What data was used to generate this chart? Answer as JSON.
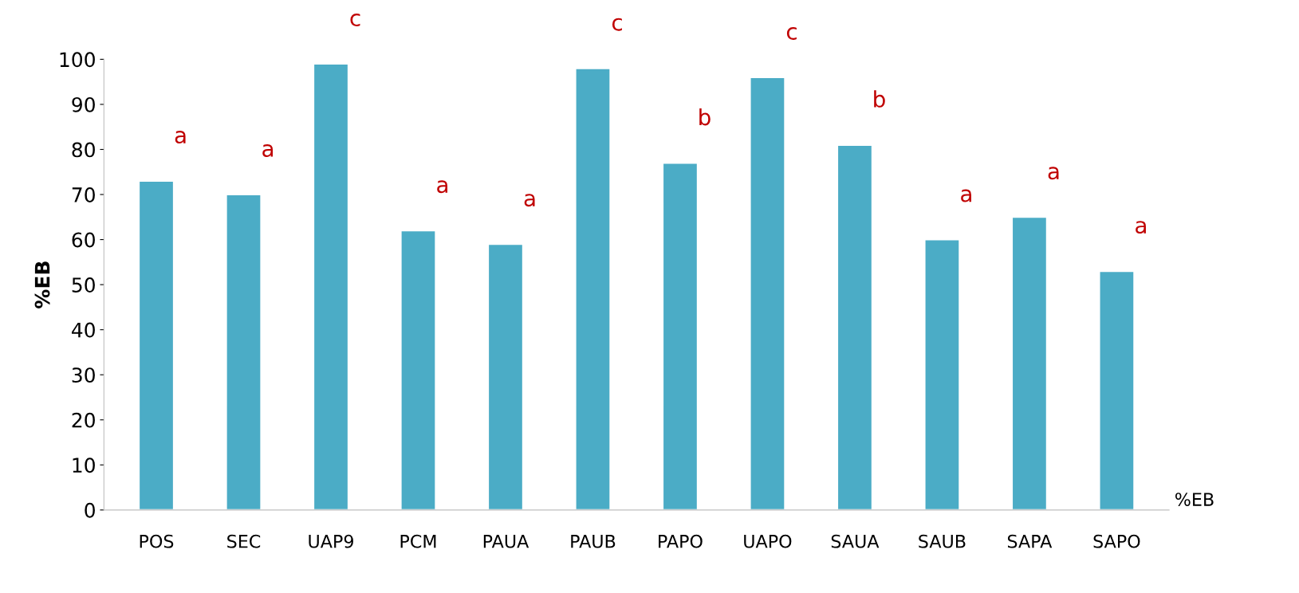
{
  "chart_data": {
    "type": "bar",
    "ylabel": "%EB",
    "categories": [
      "POS",
      "SEC",
      "UAP9",
      "PCM",
      "PAUA",
      "PAUB",
      "PAPO",
      "UAPO",
      "SAUA",
      "SAUB",
      "SAPA",
      "SAPO"
    ],
    "values": [
      73,
      70,
      99,
      62,
      59,
      98,
      77,
      96,
      81,
      60,
      65,
      53
    ],
    "color": "#4bacc6",
    "ylim": [
      0,
      100
    ],
    "yticks": [
      0,
      10,
      20,
      30,
      40,
      50,
      60,
      70,
      80,
      90,
      100
    ],
    "grid": false,
    "annotations": [
      {
        "text": "a",
        "x": "POS",
        "y": 73
      },
      {
        "text": "a",
        "x": "SEC",
        "y": 70
      },
      {
        "text": "c",
        "x": "UAP9",
        "y": 99
      },
      {
        "text": "a",
        "x": "PCM",
        "y": 62
      },
      {
        "text": "a",
        "x": "PAUA",
        "y": 59
      },
      {
        "text": "c",
        "x": "PAUB",
        "y": 98
      },
      {
        "text": "b",
        "x": "PAPO",
        "y": 77
      },
      {
        "text": "c",
        "x": "UAPO",
        "y": 96
      },
      {
        "text": "b",
        "x": "SAUA",
        "y": 81
      },
      {
        "text": "a",
        "x": "SAUB",
        "y": 60
      },
      {
        "text": "a",
        "x": "SAPA",
        "y": 65
      },
      {
        "text": "a",
        "x": "SAPO",
        "y": 53
      },
      "%EB"
    ]
  }
}
